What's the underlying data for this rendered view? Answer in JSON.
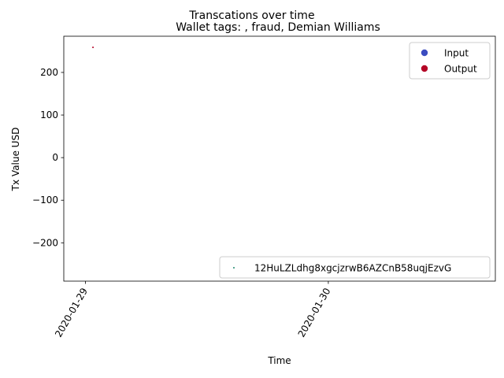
{
  "chart_data": {
    "type": "scatter",
    "suptitle": "Transcations over time",
    "title": "Wallet tags: , fraud, Demian Williams",
    "xlabel": "Time",
    "ylabel": "Tx Value USD",
    "xlim": [
      "2020-01-28 21:52",
      "2020-01-30 16:30"
    ],
    "ylim": [
      -290,
      285
    ],
    "x_ticks": [
      "2020-01-29",
      "2020-01-30"
    ],
    "y_ticks": [
      200,
      100,
      0,
      -100,
      -200
    ],
    "y_tick_labels": [
      "200",
      "100",
      "0",
      "−100",
      "−200"
    ],
    "series": [
      {
        "name": "Output",
        "color": "#b40426",
        "points": [
          {
            "x": "2020-01-29 00:45",
            "y": 259
          }
        ]
      }
    ],
    "legend_direction": {
      "placement": "top-right",
      "entries": [
        {
          "label": "Input",
          "color": "#3b4cc0"
        },
        {
          "label": "Output",
          "color": "#b40426"
        }
      ]
    },
    "legend_wallet": {
      "placement": "bottom-right",
      "entries": [
        {
          "label": "12HuLZLdhg8xgcjzrwB6AZCnB58uqjEzvG",
          "color": "#1f8a70"
        }
      ]
    }
  }
}
